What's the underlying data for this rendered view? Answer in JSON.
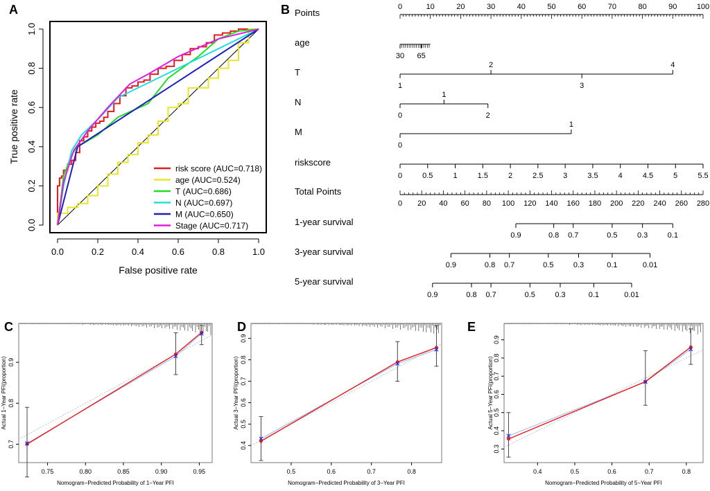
{
  "colors": {
    "axis": "#000000",
    "diagonal": "#000000",
    "calib_red": "#e41a1c",
    "calib_blue": "#2020ee",
    "calib_ideal": "#b8cbe0",
    "errbar": "#444444"
  },
  "chart_data": [
    {
      "panel": "A",
      "type": "line",
      "title": "",
      "xlabel": "False positive rate",
      "ylabel": "True positive rate",
      "xlim": [
        0,
        1
      ],
      "ylim": [
        0,
        1
      ],
      "xticks": [
        "0.0",
        "0.2",
        "0.4",
        "0.6",
        "0.8",
        "1.0"
      ],
      "yticks": [
        "0.0",
        "0.2",
        "0.4",
        "0.6",
        "0.8",
        "1.0"
      ],
      "diagonal": true,
      "legend_position": "bottom-right",
      "series": [
        {
          "name": "risk score (AUC=0.718)",
          "color": "#e41a1c",
          "step": true,
          "x": [
            0,
            0.01,
            0.02,
            0.03,
            0.05,
            0.07,
            0.09,
            0.11,
            0.13,
            0.15,
            0.17,
            0.19,
            0.21,
            0.23,
            0.25,
            0.28,
            0.31,
            0.34,
            0.37,
            0.4,
            0.43,
            0.46,
            0.5,
            0.54,
            0.58,
            0.62,
            0.66,
            0.7,
            0.74,
            0.78,
            0.82,
            0.86,
            0.9,
            0.95,
            1.0
          ],
          "y": [
            0,
            0.2,
            0.24,
            0.25,
            0.28,
            0.31,
            0.33,
            0.37,
            0.43,
            0.45,
            0.48,
            0.5,
            0.52,
            0.53,
            0.55,
            0.58,
            0.62,
            0.66,
            0.7,
            0.71,
            0.73,
            0.74,
            0.77,
            0.8,
            0.81,
            0.84,
            0.87,
            0.9,
            0.91,
            0.93,
            0.97,
            0.98,
            0.99,
            1.0,
            1.0
          ]
        },
        {
          "name": "age (AUC=0.524)",
          "color": "#e6e62a",
          "step": true,
          "x": [
            0,
            0.05,
            0.1,
            0.15,
            0.2,
            0.25,
            0.3,
            0.35,
            0.4,
            0.45,
            0.5,
            0.55,
            0.6,
            0.65,
            0.7,
            0.75,
            0.8,
            0.85,
            0.9,
            0.95,
            1.0
          ],
          "y": [
            0,
            0.06,
            0.09,
            0.11,
            0.15,
            0.2,
            0.26,
            0.32,
            0.36,
            0.42,
            0.46,
            0.53,
            0.6,
            0.62,
            0.7,
            0.7,
            0.75,
            0.8,
            0.84,
            0.93,
            1.0
          ]
        },
        {
          "name": "T (AUC=0.686)",
          "color": "#22dd22",
          "step": false,
          "x": [
            0,
            0.03,
            0.07,
            0.1,
            0.2,
            0.3,
            0.45,
            0.55,
            0.7,
            0.8,
            0.9,
            1.0
          ],
          "y": [
            0,
            0.25,
            0.36,
            0.4,
            0.46,
            0.55,
            0.62,
            0.75,
            0.86,
            0.95,
            0.99,
            1.0
          ]
        },
        {
          "name": "N (AUC=0.697)",
          "color": "#22dddd",
          "step": false,
          "x": [
            0,
            0.03,
            0.07,
            0.12,
            0.22,
            0.3,
            0.4,
            0.6,
            0.8,
            1.0
          ],
          "y": [
            0,
            0.2,
            0.38,
            0.46,
            0.56,
            0.65,
            0.7,
            0.8,
            0.9,
            1.0
          ]
        },
        {
          "name": "M (AUC=0.650)",
          "color": "#1f1fbf",
          "step": false,
          "x": [
            0,
            0.1,
            1.0
          ],
          "y": [
            0,
            0.4,
            1.0
          ]
        },
        {
          "name": "Stage (AUC=0.717)",
          "color": "#e01ce0",
          "step": false,
          "x": [
            0,
            0.03,
            0.08,
            0.15,
            0.25,
            0.36,
            0.45,
            0.6,
            0.8,
            1.0
          ],
          "y": [
            0,
            0.22,
            0.38,
            0.48,
            0.6,
            0.72,
            0.77,
            0.86,
            0.95,
            1.0
          ]
        }
      ]
    },
    {
      "panel": "B",
      "type": "nomogram",
      "rows": [
        {
          "label": "Points",
          "kind": "scale",
          "min": 0,
          "max": 100,
          "ticks": [
            0,
            10,
            20,
            30,
            40,
            50,
            60,
            70,
            80,
            90,
            100
          ],
          "tick_labels": [
            "0",
            "10",
            "20",
            "30",
            "40",
            "50",
            "60",
            "70",
            "80",
            "90",
            "100"
          ],
          "minor": 1,
          "labels_above": true
        },
        {
          "label": "age",
          "kind": "points",
          "items": [
            {
              "text": "30",
              "pts": 0,
              "side": "below"
            },
            {
              "text": "65",
              "pts": 7.0,
              "side": "below"
            }
          ],
          "line": [
            0,
            10
          ],
          "dense": true
        },
        {
          "label": "T",
          "kind": "points",
          "items": [
            {
              "text": "1",
              "pts": 0,
              "side": "below"
            },
            {
              "text": "2",
              "pts": 30,
              "side": "above"
            },
            {
              "text": "3",
              "pts": 60,
              "side": "below"
            },
            {
              "text": "4",
              "pts": 90,
              "side": "above"
            }
          ],
          "line": [
            0,
            90
          ]
        },
        {
          "label": "N",
          "kind": "points",
          "items": [
            {
              "text": "0",
              "pts": 0,
              "side": "below"
            },
            {
              "text": "1",
              "pts": 14.5,
              "side": "above"
            },
            {
              "text": "2",
              "pts": 29,
              "side": "below"
            }
          ],
          "line": [
            0,
            29
          ]
        },
        {
          "label": "M",
          "kind": "points",
          "items": [
            {
              "text": "0",
              "pts": 0,
              "side": "below"
            },
            {
              "text": "1",
              "pts": 56.5,
              "side": "above"
            }
          ],
          "line": [
            0,
            56.5
          ]
        },
        {
          "label": "riskscore",
          "kind": "points",
          "items": [
            {
              "text": "0",
              "pts": 0
            },
            {
              "text": "0.5",
              "pts": 9.1
            },
            {
              "text": "1",
              "pts": 18.2
            },
            {
              "text": "1.5",
              "pts": 27.3
            },
            {
              "text": "2",
              "pts": 36.4
            },
            {
              "text": "2.5",
              "pts": 45.5
            },
            {
              "text": "3",
              "pts": 54.5
            },
            {
              "text": "3.5",
              "pts": 63.6
            },
            {
              "text": "4",
              "pts": 72.7
            },
            {
              "text": "4.5",
              "pts": 81.8
            },
            {
              "text": "5",
              "pts": 90.9
            },
            {
              "text": "5.5",
              "pts": 100
            }
          ],
          "line": [
            0,
            100
          ]
        },
        {
          "label": "Total Points",
          "kind": "scale",
          "min": 0,
          "max": 280,
          "ticks": [
            0,
            20,
            40,
            60,
            80,
            100,
            120,
            140,
            160,
            180,
            200,
            220,
            240,
            260,
            280
          ],
          "tick_labels": [
            "0",
            "20",
            "40",
            "60",
            "80",
            "100",
            "120",
            "140",
            "160",
            "180",
            "200",
            "220",
            "240",
            "260",
            "280"
          ],
          "minor": 4
        },
        {
          "label": "1-year survival",
          "kind": "survival",
          "items": [
            {
              "text": "0.9",
              "total": 107
            },
            {
              "text": "0.8",
              "total": 142
            },
            {
              "text": "0.7",
              "total": 160
            },
            {
              "text": "0.5",
              "total": 196
            },
            {
              "text": "0.3",
              "total": 224
            },
            {
              "text": "0.1",
              "total": 252
            }
          ]
        },
        {
          "label": "3-year survival",
          "kind": "survival",
          "items": [
            {
              "text": "0.9",
              "total": 47
            },
            {
              "text": "0.8",
              "total": 83
            },
            {
              "text": "0.7",
              "total": 101
            },
            {
              "text": "0.5",
              "total": 137
            },
            {
              "text": "0.3",
              "total": 165
            },
            {
              "text": "0.1",
              "total": 196
            },
            {
              "text": "0.01",
              "total": 231
            }
          ]
        },
        {
          "label": "5-year survival",
          "kind": "survival",
          "items": [
            {
              "text": "0.9",
              "total": 30
            },
            {
              "text": "0.8",
              "total": 66
            },
            {
              "text": "0.7",
              "total": 84
            },
            {
              "text": "0.5",
              "total": 120
            },
            {
              "text": "0.3",
              "total": 148
            },
            {
              "text": "0.1",
              "total": 179
            },
            {
              "text": "0.01",
              "total": 214
            }
          ]
        }
      ]
    },
    {
      "panel": "C",
      "type": "line",
      "subtype": "calibration",
      "xlabel": "Nomogram−Predicted Probability of 1−Year PFI",
      "ylabel": "Actual 1−Year PFI(proportion)",
      "xlim": [
        0.712,
        0.967
      ],
      "ylim": [
        0.655,
        0.995
      ],
      "xticks": [
        0.75,
        0.8,
        0.85,
        0.9,
        0.95
      ],
      "xtick_labels": [
        "0.75",
        "0.80",
        "0.85",
        "0.90",
        "0.95"
      ],
      "yticks": [
        0.7,
        0.8,
        0.9
      ],
      "ytick_labels": [
        "0.7",
        "0.8",
        "0.9"
      ],
      "points": [
        {
          "x": 0.723,
          "y": 0.7,
          "lo": 0.62,
          "hi": 0.79,
          "bc": 0.702
        },
        {
          "x": 0.919,
          "y": 0.92,
          "lo": 0.87,
          "hi": 0.972,
          "bc": 0.915
        },
        {
          "x": 0.953,
          "y": 0.973,
          "lo": 0.943,
          "hi": 0.99,
          "bc": 0.97
        }
      ]
    },
    {
      "panel": "D",
      "type": "line",
      "subtype": "calibration",
      "xlabel": "Nomogram−Predicted Probability of 3−Year PFI",
      "ylabel": "Actual 3−Year PFI(proportion)",
      "xlim": [
        0.4,
        0.875
      ],
      "ylim": [
        0.32,
        0.97
      ],
      "xticks": [
        0.5,
        0.6,
        0.7,
        0.8
      ],
      "xtick_labels": [
        "0.5",
        "0.6",
        "0.7",
        "0.8"
      ],
      "yticks": [
        0.4,
        0.5,
        0.6,
        0.7,
        0.8,
        0.9
      ],
      "ytick_labels": [
        "0.4",
        "0.5",
        "0.6",
        "0.7",
        "0.8",
        "0.9"
      ],
      "points": [
        {
          "x": 0.425,
          "y": 0.42,
          "lo": 0.33,
          "hi": 0.535,
          "bc": 0.432
        },
        {
          "x": 0.765,
          "y": 0.79,
          "lo": 0.7,
          "hi": 0.885,
          "bc": 0.782
        },
        {
          "x": 0.862,
          "y": 0.857,
          "lo": 0.77,
          "hi": 0.96,
          "bc": 0.848
        }
      ]
    },
    {
      "panel": "E",
      "type": "line",
      "subtype": "calibration",
      "xlabel": "Nomogram−Predicted Probability of 5−Year PFI",
      "ylabel": "Actual 5−Year PFI(proportion)",
      "xlim": [
        0.31,
        0.845
      ],
      "ylim": [
        0.225,
        0.99
      ],
      "xticks": [
        0.4,
        0.5,
        0.6,
        0.7,
        0.8
      ],
      "xtick_labels": [
        "0.4",
        "0.5",
        "0.6",
        "0.7",
        "0.8"
      ],
      "yticks": [
        0.3,
        0.4,
        0.5,
        0.6,
        0.7,
        0.8,
        0.9
      ],
      "ytick_labels": [
        "0.3",
        "0.4",
        "0.5",
        "0.6",
        "0.7",
        "0.8",
        "0.9"
      ],
      "points": [
        {
          "x": 0.322,
          "y": 0.355,
          "lo": 0.255,
          "hi": 0.5,
          "bc": 0.372
        },
        {
          "x": 0.69,
          "y": 0.67,
          "lo": 0.54,
          "hi": 0.84,
          "bc": 0.668
        },
        {
          "x": 0.812,
          "y": 0.86,
          "lo": 0.765,
          "hi": 0.96,
          "bc": 0.848
        }
      ]
    }
  ]
}
